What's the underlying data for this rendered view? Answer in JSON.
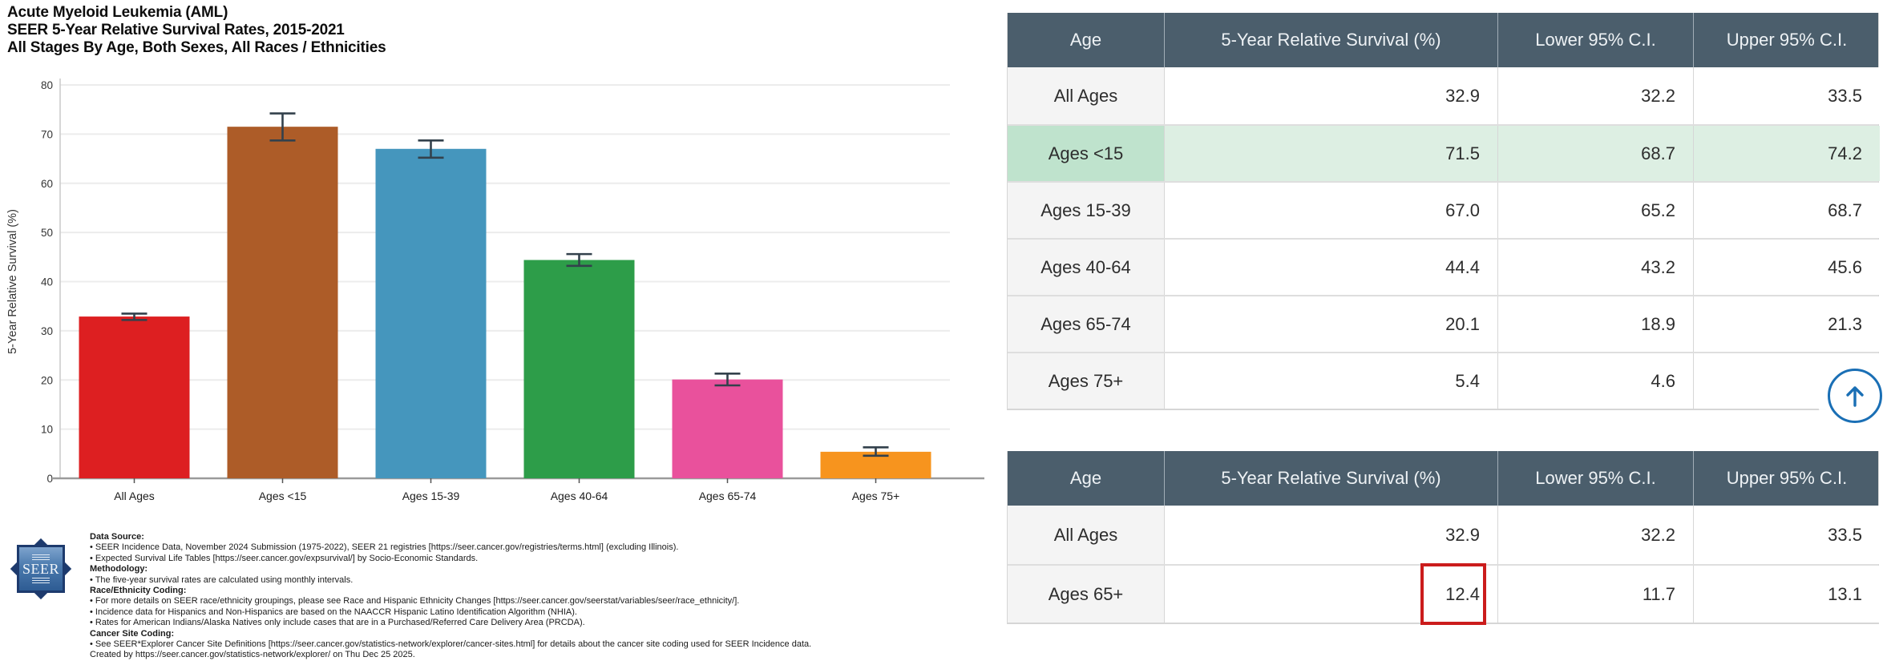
{
  "title_lines": [
    "Acute Myeloid Leukemia (AML)",
    "SEER 5-Year Relative Survival Rates, 2015-2021",
    "All Stages By Age, Both Sexes, All Races / Ethnicities"
  ],
  "chart_data": {
    "type": "bar",
    "categories": [
      "All Ages",
      "Ages <15",
      "Ages 15-39",
      "Ages 40-64",
      "Ages 65-74",
      "Ages 75+"
    ],
    "values": [
      32.9,
      71.5,
      67.0,
      44.4,
      20.1,
      5.4
    ],
    "error_low": [
      32.2,
      68.7,
      65.2,
      43.2,
      18.9,
      4.6
    ],
    "error_high": [
      33.5,
      74.2,
      68.7,
      45.6,
      21.3,
      6.3
    ],
    "bar_colors": [
      "#dd1f21",
      "#ad5c28",
      "#4596bd",
      "#2d9d49",
      "#e9519c",
      "#f7941e"
    ],
    "title": "Acute Myeloid Leukemia (AML) SEER 5-Year Relative Survival Rates, 2015-2021",
    "xlabel": "",
    "ylabel": "5-Year Relative Survival (%)",
    "ylim": [
      0,
      80
    ],
    "ytick_step": 10,
    "grid": true,
    "legend": "none"
  },
  "tables": [
    {
      "name": "survival-by-age-group",
      "columns": [
        "Age",
        "5-Year Relative Survival (%)",
        "Lower 95% C.I.",
        "Upper 95% C.I."
      ],
      "rows": [
        {
          "age": "All Ages",
          "survival": "32.9",
          "lower": "32.2",
          "upper": "33.5",
          "highlight": false,
          "boxed": false
        },
        {
          "age": "Ages <15",
          "survival": "71.5",
          "lower": "68.7",
          "upper": "74.2",
          "highlight": true,
          "boxed": false
        },
        {
          "age": "Ages 15-39",
          "survival": "67.0",
          "lower": "65.2",
          "upper": "68.7",
          "highlight": false,
          "boxed": false
        },
        {
          "age": "Ages 40-64",
          "survival": "44.4",
          "lower": "43.2",
          "upper": "45.6",
          "highlight": false,
          "boxed": false
        },
        {
          "age": "Ages 65-74",
          "survival": "20.1",
          "lower": "18.9",
          "upper": "21.3",
          "highlight": false,
          "boxed": false
        },
        {
          "age": "Ages 75+",
          "survival": "5.4",
          "lower": "4.6",
          "upper": "",
          "highlight": false,
          "boxed": false
        }
      ]
    },
    {
      "name": "survival-ages-65-plus",
      "columns": [
        "Age",
        "5-Year Relative Survival (%)",
        "Lower 95% C.I.",
        "Upper 95% C.I."
      ],
      "rows": [
        {
          "age": "All Ages",
          "survival": "32.9",
          "lower": "32.2",
          "upper": "33.5",
          "highlight": false,
          "boxed": false
        },
        {
          "age": "Ages 65+",
          "survival": "12.4",
          "lower": "11.7",
          "upper": "13.1",
          "highlight": false,
          "boxed": true
        }
      ]
    }
  ],
  "footer": {
    "logo_text": "SEER",
    "lines": [
      {
        "bold": true,
        "text": "Data Source:"
      },
      {
        "bold": false,
        "text": "• SEER Incidence Data, November 2024 Submission (1975-2022), SEER 21 registries [https://seer.cancer.gov/registries/terms.html] (excluding Illinois)."
      },
      {
        "bold": false,
        "text": "• Expected Survival Life Tables [https://seer.cancer.gov/expsurvival/] by Socio-Economic Standards."
      },
      {
        "bold": true,
        "text": "Methodology:"
      },
      {
        "bold": false,
        "text": "• The five-year survival rates are calculated using monthly intervals."
      },
      {
        "bold": true,
        "text": "Race/Ethnicity Coding:"
      },
      {
        "bold": false,
        "text": "• For more details on SEER race/ethnicity groupings, please see Race and Hispanic Ethnicity Changes [https://seer.cancer.gov/seerstat/variables/seer/race_ethnicity/]."
      },
      {
        "bold": false,
        "text": "• Incidence data for Hispanics and Non-Hispanics are based on the NAACCR Hispanic Latino Identification Algorithm (NHIA)."
      },
      {
        "bold": false,
        "text": "• Rates for American Indians/Alaska Natives only include cases that are in a Purchased/Referred Care Delivery Area (PRCDA)."
      },
      {
        "bold": true,
        "text": "Cancer Site Coding:"
      },
      {
        "bold": false,
        "text": "• See SEER*Explorer Cancer Site Definitions [https://seer.cancer.gov/statistics-network/explorer/cancer-sites.html] for details about the cancer site coding used for SEER Incidence data."
      },
      {
        "bold": false,
        "text": "Created by https://seer.cancer.gov/statistics-network/explorer/ on Thu Dec 25 2025."
      }
    ]
  },
  "scroll_top_button": {
    "icon": "up-arrow-icon",
    "accent_color": "#1a6fb5"
  },
  "colors": {
    "table_header_bg": "#4b5e6c",
    "table_header_text": "#eef2f5",
    "highlight_row_bg": "#ddefe3",
    "highlight_age_cell_bg": "#bfe3cd",
    "red_box_border": "#cb1c1c",
    "gridline": "#ececec",
    "error_bar": "#33414c"
  }
}
